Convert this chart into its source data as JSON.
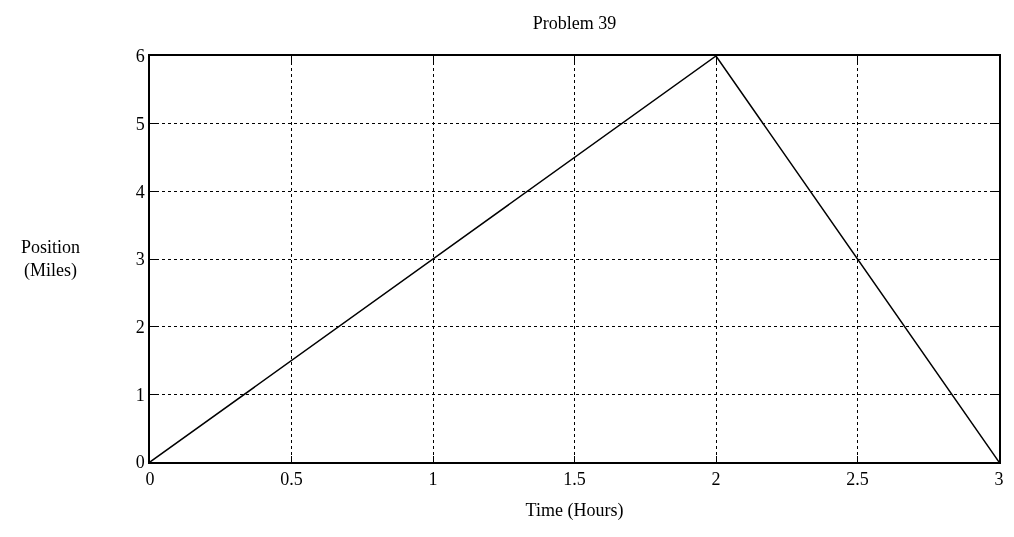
{
  "chart_data": {
    "type": "line",
    "title": "Problem 39",
    "xlabel": "Time (Hours)",
    "ylabel": "Position\n(Miles)",
    "x": [
      0,
      2,
      3
    ],
    "series": [
      {
        "color": "#000000",
        "values": [
          0,
          6,
          0
        ]
      }
    ],
    "xlim": [
      0,
      3
    ],
    "xticks": [
      0,
      0.5,
      1,
      1.5,
      2,
      2.5,
      3
    ],
    "ylim": [
      0,
      6
    ],
    "yticks": [
      0,
      1,
      2,
      3,
      4,
      5,
      6
    ],
    "grid": true,
    "marker": "none",
    "line_style": "solid"
  }
}
